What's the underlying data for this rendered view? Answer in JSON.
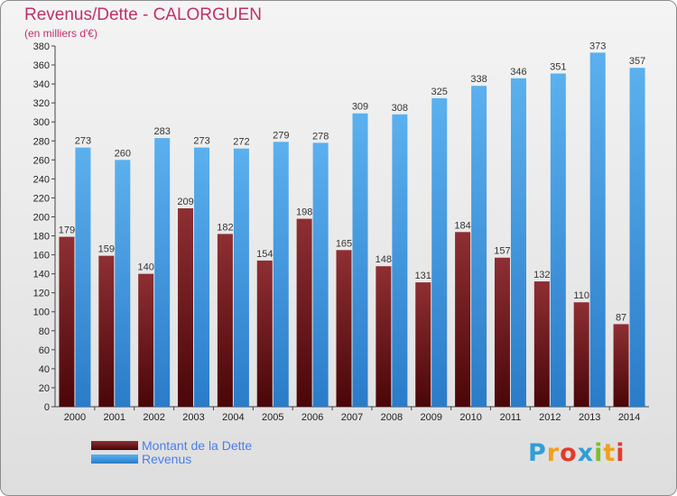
{
  "title": "Revenus/Dette - CALORGUEN",
  "subtitle": "(en milliers d'€)",
  "logo": {
    "letters": [
      "P",
      "r",
      "o",
      "x",
      "i",
      "t",
      "i"
    ],
    "colors": [
      "#2e9fd8",
      "#f0a020",
      "#e33b2b",
      "#2e9fd8",
      "#7bbf2a",
      "#f0a020",
      "#e33b2b"
    ]
  },
  "chart_data": {
    "type": "bar",
    "title": "Revenus/Dette - CALORGUEN",
    "ylabel": "(en milliers d'€)",
    "ylim": [
      0,
      380
    ],
    "yticks": [
      0,
      20,
      40,
      60,
      80,
      100,
      120,
      140,
      160,
      180,
      200,
      220,
      240,
      260,
      280,
      300,
      320,
      340,
      360,
      380
    ],
    "grid": false,
    "legend": "bottom-left",
    "categories": [
      "2000",
      "2001",
      "2002",
      "2003",
      "2004",
      "2005",
      "2006",
      "2007",
      "2008",
      "2009",
      "2010",
      "2011",
      "2012",
      "2013",
      "2014"
    ],
    "series": [
      {
        "name": "Montant de la Dette",
        "color": "#8b2a2e",
        "values": [
          179,
          159,
          140,
          209,
          182,
          154,
          198,
          165,
          148,
          131,
          184,
          157,
          132,
          110,
          87
        ]
      },
      {
        "name": "Revenus",
        "color": "#4aa3e8",
        "values": [
          273,
          260,
          283,
          273,
          272,
          279,
          278,
          309,
          308,
          325,
          338,
          346,
          351,
          373,
          357
        ]
      }
    ]
  }
}
